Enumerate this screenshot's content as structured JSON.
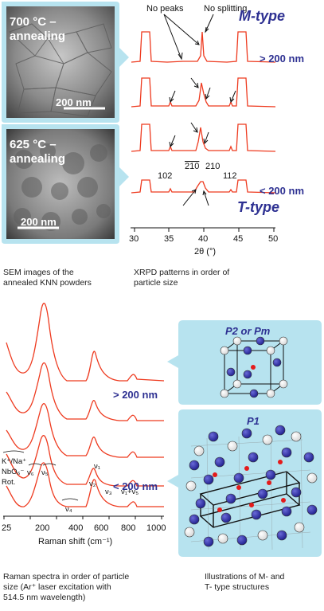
{
  "sem": {
    "top": {
      "label_line1": "700 °C –",
      "label_line2": "annealing",
      "scale": "200 nm"
    },
    "bottom": {
      "label_line1": "625 °C –",
      "label_line2": "annealing",
      "scale": "200 nm"
    }
  },
  "xrpd": {
    "annotation_no_peaks": "No peaks",
    "annotation_no_splitting": "No splitting",
    "m_type": "M-type",
    "t_type": "T-type",
    "gt200": "> 200 nm",
    "lt200": "< 200 nm",
    "reflections": [
      "102",
      "210",
      "210",
      "112"
    ],
    "x_label": "2θ (°)",
    "x_ticks": [
      "30",
      "35",
      "40",
      "45",
      "50"
    ]
  },
  "raman": {
    "gt200": "> 200 nm",
    "lt200": "< 200 nm",
    "band_labels": {
      "ext": "K⁺/Na⁺",
      "nbo": "NbO₆⁻",
      "rot": "Rot.",
      "v6": "ν₆",
      "v5": "ν₅",
      "v4": "ν₄",
      "v2": "ν₂",
      "v3": "ν₃",
      "v1": "ν₁",
      "v1v5": "ν₁+ν₅"
    },
    "x_label": "Raman shift (cm⁻¹)",
    "x_ticks": [
      "25",
      "200",
      "400",
      "600",
      "800",
      "1000"
    ]
  },
  "structures": {
    "top_title": "P2 or Pm",
    "bottom_title": "P1"
  },
  "captions": {
    "sem_line1": "SEM images of the",
    "sem_line2": "annealed KNN powders",
    "xrpd_line1": "XRPD patterns in order of",
    "xrpd_line2": "particle size",
    "raman_line1": "Raman spectra in order of particle",
    "raman_line2": "size (Ar⁺ laser excitation with",
    "raman_line3": "514.5 nm wavelength)",
    "struct_line1": "Illustrations of M-  and",
    "struct_line2": "T- type structures"
  },
  "colors": {
    "trace": "#ee3a1f",
    "panel_bg": "#b7e3ef",
    "label_blue": "#2e3192"
  }
}
